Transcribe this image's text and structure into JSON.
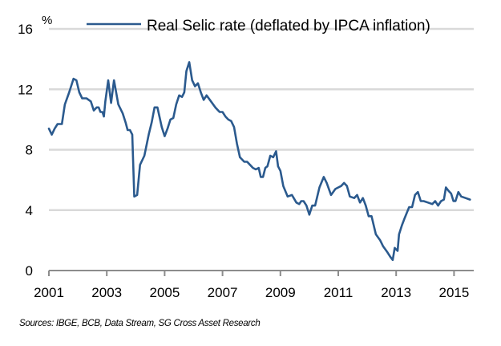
{
  "chart_data": {
    "type": "line",
    "title": "",
    "ylabel": "%",
    "xlabel": "",
    "ylim": [
      0,
      16
    ],
    "xlim": [
      2001,
      2015.6
    ],
    "yticks": [
      0,
      4,
      8,
      12,
      16
    ],
    "xticks": [
      "2001",
      "2003",
      "2005",
      "2007",
      "2009",
      "2011",
      "2013",
      "2015"
    ],
    "grid": true,
    "legend": {
      "placement": "top-right",
      "entries": [
        "Real Selic rate (deflated  by IPCA inflation)"
      ]
    },
    "series": [
      {
        "name": "Real Selic rate (deflated  by IPCA inflation)",
        "color": "#2b5a8e",
        "x": [
          2001.0,
          2001.1,
          2001.2,
          2001.3,
          2001.45,
          2001.55,
          2001.7,
          2001.85,
          2001.95,
          2002.05,
          2002.15,
          2002.3,
          2002.45,
          2002.55,
          2002.65,
          2002.72,
          2002.78,
          2002.85,
          2002.9,
          2002.95,
          2003.05,
          2003.15,
          2003.25,
          2003.4,
          2003.55,
          2003.65,
          2003.72,
          2003.8,
          2003.88,
          2003.95,
          2004.05,
          2004.15,
          2004.3,
          2004.45,
          2004.55,
          2004.65,
          2004.75,
          2004.9,
          2005.0,
          2005.1,
          2005.2,
          2005.3,
          2005.4,
          2005.5,
          2005.6,
          2005.68,
          2005.75,
          2005.85,
          2005.95,
          2006.05,
          2006.15,
          2006.25,
          2006.35,
          2006.45,
          2006.6,
          2006.75,
          2006.9,
          2007.0,
          2007.1,
          2007.2,
          2007.3,
          2007.4,
          2007.5,
          2007.6,
          2007.75,
          2007.85,
          2007.95,
          2008.05,
          2008.15,
          2008.25,
          2008.32,
          2008.4,
          2008.48,
          2008.55,
          2008.65,
          2008.75,
          2008.85,
          2008.92,
          2009.0,
          2009.1,
          2009.25,
          2009.4,
          2009.55,
          2009.65,
          2009.72,
          2009.8,
          2009.9,
          2010.0,
          2010.1,
          2010.2,
          2010.35,
          2010.5,
          2010.6,
          2010.75,
          2010.9,
          2011.0,
          2011.1,
          2011.2,
          2011.3,
          2011.4,
          2011.55,
          2011.65,
          2011.75,
          2011.85,
          2011.95,
          2012.05,
          2012.15,
          2012.3,
          2012.45,
          2012.55,
          2012.7,
          2012.8,
          2012.88,
          2012.95,
          2013.05,
          2013.1,
          2013.2,
          2013.3,
          2013.45,
          2013.55,
          2013.65,
          2013.75,
          2013.85,
          2013.95,
          2014.1,
          2014.25,
          2014.35,
          2014.45,
          2014.55,
          2014.65,
          2014.72,
          2014.8,
          2014.9,
          2014.98,
          2015.05,
          2015.15,
          2015.25,
          2015.4,
          2015.55
        ],
        "values": [
          9.4,
          9.0,
          9.4,
          9.7,
          9.7,
          11.0,
          11.8,
          12.7,
          12.6,
          11.8,
          11.4,
          11.4,
          11.2,
          10.6,
          10.8,
          10.8,
          10.5,
          10.5,
          10.2,
          11.2,
          12.6,
          11.1,
          12.6,
          11.0,
          10.4,
          9.8,
          9.3,
          9.3,
          9.0,
          4.9,
          5.0,
          7.0,
          7.6,
          9.0,
          9.8,
          10.8,
          10.8,
          9.5,
          8.9,
          9.4,
          10.0,
          10.1,
          11.0,
          11.6,
          11.5,
          11.8,
          13.2,
          13.8,
          12.6,
          12.2,
          12.4,
          11.8,
          11.3,
          11.6,
          11.2,
          10.8,
          10.5,
          10.5,
          10.2,
          10.0,
          9.9,
          9.5,
          8.4,
          7.5,
          7.2,
          7.2,
          7.0,
          6.8,
          6.7,
          6.8,
          6.2,
          6.2,
          6.8,
          6.9,
          7.6,
          7.5,
          7.9,
          6.9,
          6.6,
          5.6,
          4.9,
          5.0,
          4.5,
          4.4,
          4.6,
          4.6,
          4.3,
          3.7,
          4.3,
          4.3,
          5.5,
          6.2,
          5.8,
          5.0,
          5.4,
          5.5,
          5.6,
          5.8,
          5.6,
          4.9,
          4.8,
          5.0,
          4.5,
          4.8,
          4.3,
          3.6,
          3.6,
          2.4,
          2.0,
          1.6,
          1.2,
          0.9,
          0.7,
          1.5,
          1.3,
          2.4,
          3.0,
          3.5,
          4.2,
          4.2,
          5.0,
          5.2,
          4.6,
          4.6,
          4.5,
          4.4,
          4.6,
          4.3,
          4.6,
          4.7,
          5.5,
          5.3,
          5.1,
          4.6,
          4.6,
          5.2,
          4.9,
          4.8,
          4.7
        ]
      }
    ],
    "source": "Sources: IBGE, BCB, Data Stream, SG Cross Asset Research"
  }
}
